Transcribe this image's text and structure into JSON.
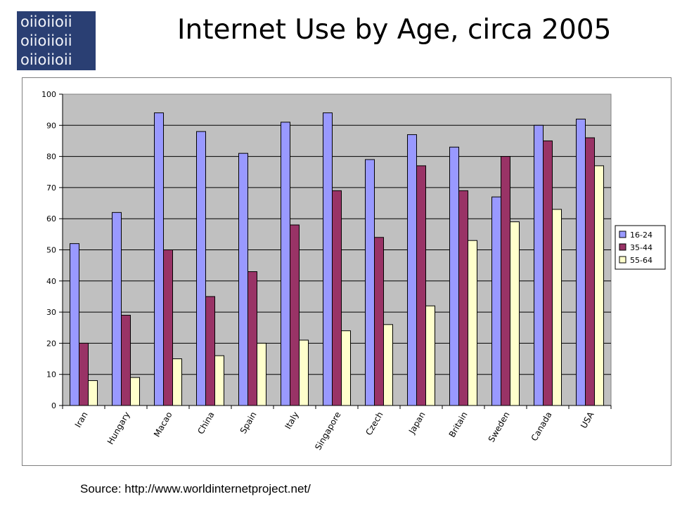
{
  "logo": {
    "rows": [
      "oiioiioii",
      "oiioiioii",
      "oiioiioii"
    ],
    "background": "#2a3f73"
  },
  "title": "Internet Use by Age, circa 2005",
  "source": "Source: http://www.worldinternetproject.net/",
  "chart_data": {
    "type": "bar",
    "title": "",
    "xlabel": "",
    "ylabel": "",
    "ylim": [
      0,
      100
    ],
    "yticks": [
      0,
      10,
      20,
      30,
      40,
      50,
      60,
      70,
      80,
      90,
      100
    ],
    "grid": true,
    "legend_position": "right",
    "plot_background": "#c0c0c0",
    "categories": [
      "Iran",
      "Hungary",
      "Macao",
      "China",
      "Spain",
      "Italy",
      "Singapore",
      "Czech",
      "Japan",
      "Britain",
      "Sweden",
      "Canada",
      "USA"
    ],
    "series": [
      {
        "name": "16-24",
        "color": "#9999ff",
        "values": [
          52,
          62,
          94,
          88,
          81,
          91,
          94,
          79,
          87,
          83,
          67,
          90,
          92
        ]
      },
      {
        "name": "35-44",
        "color": "#993366",
        "values": [
          20,
          29,
          50,
          35,
          43,
          58,
          69,
          54,
          77,
          69,
          80,
          85,
          86
        ]
      },
      {
        "name": "55-64",
        "color": "#ffffcc",
        "values": [
          8,
          9,
          15,
          16,
          20,
          21,
          24,
          26,
          32,
          53,
          59,
          63,
          77
        ]
      }
    ]
  }
}
